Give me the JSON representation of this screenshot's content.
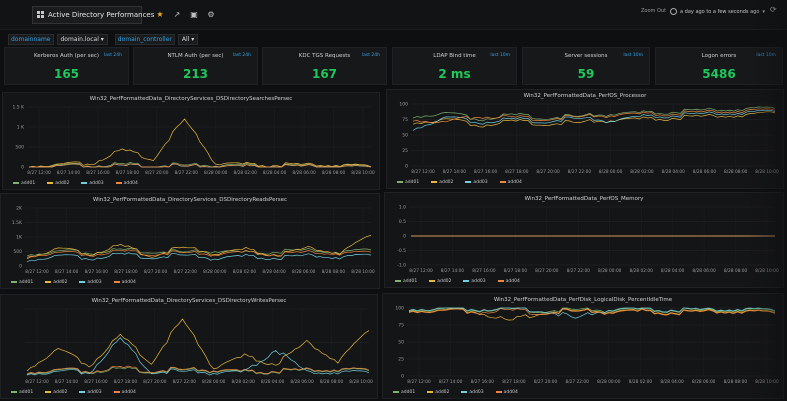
{
  "nav": {
    "dashboard_title": "Active Directory Performances",
    "zoom_out": "Zoom Out",
    "time_range": "a day ago to a few seconds ago"
  },
  "variables": [
    {
      "label": "domainname",
      "value": "domain.local"
    },
    {
      "label": "domain_controller",
      "value": "All"
    }
  ],
  "stats": [
    {
      "title": "Kerberos Auth (per sec)",
      "link": "last 24h",
      "value": "165"
    },
    {
      "title": "NTLM Auth (per sec)",
      "link": "last 24h",
      "value": "213"
    },
    {
      "title": "KDC TGS Requests",
      "link": "last 24h",
      "value": "167"
    },
    {
      "title": "LDAP Bind time",
      "link": "last 10m",
      "value": "2 ms"
    },
    {
      "title": "Server sessions",
      "link": "last 10m",
      "value": "59"
    },
    {
      "title": "Logon errors",
      "link": "last 10m",
      "value": "5486"
    }
  ],
  "colors": {
    "add01": "#7eb26d",
    "add02": "#eab839",
    "add03": "#6ed0e0",
    "add04": "#ef843c",
    "accent": "#33a2e5",
    "stat": "#1ec95b"
  },
  "legend": [
    "add01",
    "add02",
    "add03",
    "add04"
  ],
  "chart_data": [
    {
      "type": "line",
      "title": "Win32_PerfFormattedData_DirectoryServices_DSDirectorySearchesPersec",
      "yticks": [
        "1.5 K",
        "1 K",
        "500",
        "0"
      ],
      "ylim": [
        0,
        1500
      ],
      "xticks": [
        "8/27 12:00",
        "8/27 14:00",
        "8/27 16:00",
        "8/27 18:00",
        "8/27 20:00",
        "8/27 22:00",
        "8/28 00:00",
        "8/28 02:00",
        "8/28 04:00",
        "8/28 06:00",
        "8/28 08:00",
        "8/28 10:00"
      ],
      "series": [
        {
          "name": "add01",
          "values": [
            20,
            40,
            30,
            60,
            35,
            50,
            40,
            45,
            30,
            25,
            40,
            35
          ]
        },
        {
          "name": "add02",
          "values": [
            30,
            60,
            80,
            420,
            200,
            1200,
            90,
            70,
            60,
            50,
            55,
            40
          ]
        },
        {
          "name": "add03",
          "values": [
            10,
            15,
            12,
            20,
            15,
            18,
            14,
            12,
            10,
            11,
            13,
            12
          ]
        },
        {
          "name": "add04",
          "values": [
            15,
            20,
            18,
            25,
            20,
            22,
            18,
            16,
            15,
            14,
            16,
            15
          ]
        }
      ]
    },
    {
      "type": "line",
      "title": "Win32_PerfFormattedData_PerfOS_Processor",
      "yticks": [
        "100",
        "75",
        "50",
        "25",
        "0"
      ],
      "ylim": [
        0,
        100
      ],
      "xticks": [
        "8/27 12:00",
        "8/27 14:00",
        "8/27 16:00",
        "8/27 18:00",
        "8/27 20:00",
        "8/27 22:00",
        "8/28 00:00",
        "8/28 02:00",
        "8/28 04:00",
        "8/28 06:00",
        "8/28 08:00",
        "8/28 10:00"
      ],
      "series": [
        {
          "name": "add01",
          "values": [
            80,
            85,
            75,
            82,
            78,
            80,
            84,
            86,
            88,
            90,
            92,
            95
          ]
        },
        {
          "name": "add02",
          "values": [
            70,
            75,
            65,
            72,
            68,
            70,
            74,
            76,
            78,
            80,
            82,
            88
          ]
        },
        {
          "name": "add03",
          "values": [
            60,
            78,
            70,
            75,
            72,
            77,
            73,
            80,
            82,
            84,
            86,
            90
          ]
        },
        {
          "name": "add04",
          "values": [
            75,
            70,
            80,
            78,
            76,
            79,
            82,
            84,
            85,
            87,
            89,
            92
          ]
        }
      ]
    },
    {
      "type": "line",
      "title": "Win32_PerfFormattedData_DirectoryServices_DSDirectoryReadsPersec",
      "yticks": [
        "2K",
        "1.5K",
        "1K",
        "500",
        "0"
      ],
      "ylim": [
        0,
        2000
      ],
      "xticks": [
        "8/27 12:00",
        "8/27 14:00",
        "8/27 16:00",
        "8/27 18:00",
        "8/27 20:00",
        "8/27 22:00",
        "8/28 00:00",
        "8/28 02:00",
        "8/28 04:00",
        "8/28 06:00",
        "8/28 08:00",
        "8/28 10:00"
      ],
      "series": [
        {
          "name": "add01",
          "values": [
            400,
            500,
            450,
            550,
            500,
            480,
            520,
            460,
            500,
            540,
            480,
            600
          ]
        },
        {
          "name": "add02",
          "values": [
            300,
            600,
            400,
            700,
            350,
            650,
            420,
            580,
            380,
            620,
            450,
            1100
          ]
        },
        {
          "name": "add03",
          "values": [
            200,
            350,
            250,
            400,
            300,
            380,
            260,
            340,
            280,
            360,
            300,
            420
          ]
        },
        {
          "name": "add04",
          "values": [
            350,
            450,
            380,
            500,
            420,
            460,
            400,
            480,
            410,
            470,
            430,
            520
          ]
        }
      ]
    },
    {
      "type": "line",
      "title": "Win32_PerfFormattedData_PerfOS_Memory",
      "yticks": [
        "1.0",
        "0.5",
        "0",
        "-0.5",
        "-1.0"
      ],
      "ylim": [
        -1,
        1
      ],
      "xticks": [
        "8/27 12:00",
        "8/27 14:00",
        "8/27 16:00",
        "8/27 18:00",
        "8/27 20:00",
        "8/27 22:00",
        "8/28 00:00",
        "8/28 02:00",
        "8/28 04:00",
        "8/28 06:00",
        "8/28 08:00",
        "8/28 10:00"
      ],
      "series": [
        {
          "name": "add01",
          "values": [
            0,
            0,
            0,
            0,
            0,
            0,
            0,
            0,
            0,
            0,
            0,
            0
          ]
        },
        {
          "name": "add02",
          "values": [
            0,
            0,
            0,
            0,
            0,
            0,
            0,
            0,
            0,
            0,
            0,
            0
          ]
        },
        {
          "name": "add03",
          "values": [
            0,
            0,
            0,
            0,
            0,
            0,
            0,
            0,
            0,
            0,
            0,
            0
          ]
        },
        {
          "name": "add04",
          "values": [
            0,
            0,
            0,
            0,
            0,
            0,
            0,
            0,
            0,
            0,
            0,
            0
          ]
        }
      ]
    },
    {
      "type": "line",
      "title": "Win32_PerfFormattedData_DirectoryServices_DSDirectoryWritesPersec",
      "yticks": [
        "",
        "",
        ""
      ],
      "ylim": [
        0,
        100
      ],
      "xticks": [
        "8/27 12:00",
        "8/27 14:00",
        "8/27 16:00",
        "8/27 18:00",
        "8/27 20:00",
        "8/27 22:00",
        "8/28 00:00",
        "8/28 02:00",
        "8/28 04:00",
        "8/28 06:00",
        "8/28 08:00",
        "8/28 10:00"
      ],
      "series": [
        {
          "name": "add01",
          "values": [
            5,
            8,
            6,
            10,
            7,
            9,
            8,
            6,
            7,
            8,
            9,
            10
          ]
        },
        {
          "name": "add02",
          "values": [
            10,
            40,
            15,
            60,
            20,
            85,
            12,
            30,
            18,
            50,
            22,
            70
          ]
        },
        {
          "name": "add03",
          "values": [
            4,
            6,
            5,
            55,
            6,
            7,
            5,
            6,
            40,
            5,
            6,
            7
          ]
        },
        {
          "name": "add04",
          "values": [
            6,
            9,
            7,
            12,
            8,
            10,
            9,
            7,
            8,
            9,
            10,
            11
          ]
        }
      ]
    },
    {
      "type": "line",
      "title": "Win32_PerfFormattedData_PerfDisk_LogicalDisk_PercentIdleTime",
      "yticks": [
        "100",
        "75",
        "50",
        "25",
        "0"
      ],
      "ylim": [
        0,
        100
      ],
      "xticks": [
        "8/27 12:00",
        "8/27 14:00",
        "8/27 16:00",
        "8/27 18:00",
        "8/27 20:00",
        "8/27 22:00",
        "8/28 00:00",
        "8/28 02:00",
        "8/28 04:00",
        "8/28 06:00",
        "8/28 08:00",
        "8/28 10:00"
      ],
      "series": [
        {
          "name": "add01",
          "values": [
            98,
            98,
            97,
            98,
            96,
            98,
            97,
            98,
            97,
            96,
            98,
            97
          ]
        },
        {
          "name": "add02",
          "values": [
            97,
            96,
            95,
            80,
            94,
            96,
            95,
            96,
            94,
            95,
            96,
            95
          ]
        },
        {
          "name": "add03",
          "values": [
            99,
            99,
            98,
            99,
            97,
            85,
            98,
            99,
            98,
            97,
            99,
            98
          ]
        },
        {
          "name": "add04",
          "values": [
            96,
            95,
            94,
            96,
            93,
            95,
            94,
            95,
            93,
            94,
            95,
            94
          ]
        }
      ]
    }
  ]
}
